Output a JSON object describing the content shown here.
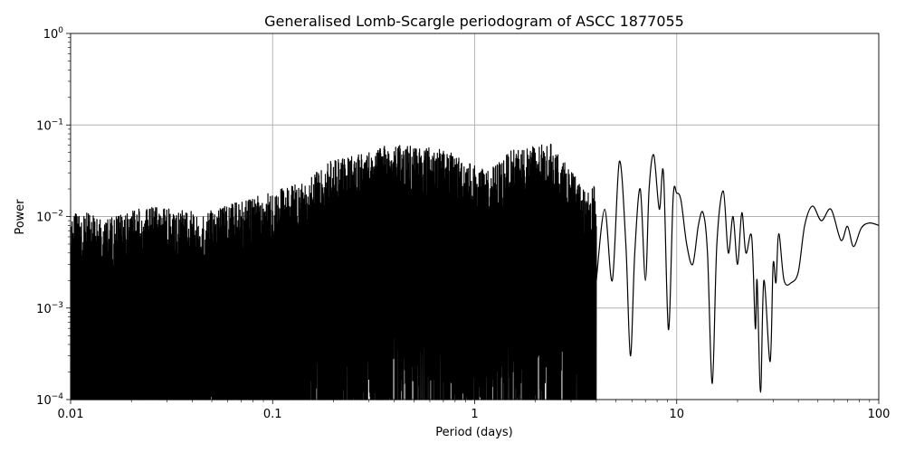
{
  "chart_data": {
    "type": "line",
    "title": "Generalised Lomb-Scargle periodogram of ASCC 1877055",
    "xlabel": "Period (days)",
    "ylabel": "Power",
    "xscale": "log",
    "yscale": "log",
    "xlim": [
      0.01,
      100
    ],
    "ylim": [
      0.0001,
      1
    ],
    "grid": true,
    "x_ticks": [
      {
        "value": 0.01,
        "label": "0.01"
      },
      {
        "value": 0.1,
        "label": "0.1"
      },
      {
        "value": 1,
        "label": "1"
      },
      {
        "value": 10,
        "label": "10"
      },
      {
        "value": 100,
        "label": "100"
      }
    ],
    "y_ticks": [
      {
        "value": 0.0001,
        "base": "10",
        "exp": "−4"
      },
      {
        "value": 0.001,
        "base": "10",
        "exp": "−3"
      },
      {
        "value": 0.01,
        "base": "10",
        "exp": "−2"
      },
      {
        "value": 0.1,
        "base": "10",
        "exp": "−1"
      },
      {
        "value": 1,
        "base": "10",
        "exp": "0"
      }
    ],
    "color": "#000000",
    "series": [
      {
        "peaks": [
          {
            "period": 0.012,
            "power": 0.011
          },
          {
            "period": 0.015,
            "power": 0.0095
          },
          {
            "period": 0.024,
            "power": 0.013
          },
          {
            "period": 0.045,
            "power": 0.011
          },
          {
            "period": 0.085,
            "power": 0.017
          },
          {
            "period": 0.15,
            "power": 0.025
          },
          {
            "period": 0.19,
            "power": 0.041
          },
          {
            "period": 0.28,
            "power": 0.051
          },
          {
            "period": 0.32,
            "power": 0.055
          },
          {
            "period": 0.38,
            "power": 0.061
          },
          {
            "period": 0.52,
            "power": 0.061
          },
          {
            "period": 0.68,
            "power": 0.055
          },
          {
            "period": 0.85,
            "power": 0.045
          },
          {
            "period": 1.15,
            "power": 0.031
          },
          {
            "period": 1.6,
            "power": 0.058
          },
          {
            "period": 2.4,
            "power": 0.062
          },
          {
            "period": 3.6,
            "power": 0.018
          },
          {
            "period": 5.2,
            "power": 0.04
          },
          {
            "period": 7.7,
            "power": 0.047
          },
          {
            "period": 10.0,
            "power": 0.018
          },
          {
            "period": 13.5,
            "power": 0.011
          },
          {
            "period": 17.0,
            "power": 0.019
          },
          {
            "period": 21.0,
            "power": 0.011
          },
          {
            "period": 32.0,
            "power": 0.0065
          },
          {
            "period": 47.0,
            "power": 0.013
          },
          {
            "period": 58.0,
            "power": 0.012
          },
          {
            "period": 70.0,
            "power": 0.0078
          },
          {
            "period": 90.0,
            "power": 0.0085
          }
        ],
        "troughs": [
          {
            "period": 5.9,
            "power": 0.0003
          },
          {
            "period": 9.1,
            "power": 0.00058
          },
          {
            "period": 15.0,
            "power": 0.00015
          },
          {
            "period": 26.0,
            "power": 0.00012
          },
          {
            "period": 29.0,
            "power": 0.00026
          },
          {
            "period": 37.0,
            "power": 0.0019
          },
          {
            "period": 75.0,
            "power": 0.0047
          }
        ],
        "points": [
          [
            4.0,
            0.002
          ],
          [
            4.4,
            0.012
          ],
          [
            4.8,
            0.002
          ],
          [
            5.2,
            0.04
          ],
          [
            5.6,
            0.005
          ],
          [
            5.9,
            0.0003
          ],
          [
            6.2,
            0.004
          ],
          [
            6.6,
            0.02
          ],
          [
            7.0,
            0.002
          ],
          [
            7.3,
            0.02
          ],
          [
            7.7,
            0.047
          ],
          [
            8.2,
            0.012
          ],
          [
            8.6,
            0.03
          ],
          [
            9.1,
            0.00058
          ],
          [
            9.6,
            0.016
          ],
          [
            10.0,
            0.018
          ],
          [
            10.5,
            0.015
          ],
          [
            11.2,
            0.005
          ],
          [
            12.0,
            0.003
          ],
          [
            12.8,
            0.008
          ],
          [
            13.5,
            0.011
          ],
          [
            14.2,
            0.004
          ],
          [
            15.0,
            0.00015
          ],
          [
            15.8,
            0.005
          ],
          [
            17.0,
            0.019
          ],
          [
            18.0,
            0.004
          ],
          [
            19.0,
            0.01
          ],
          [
            20.0,
            0.003
          ],
          [
            21.0,
            0.011
          ],
          [
            22.0,
            0.004
          ],
          [
            23.5,
            0.006
          ],
          [
            24.5,
            0.0006
          ],
          [
            25.0,
            0.002
          ],
          [
            26.0,
            0.00012
          ],
          [
            27.0,
            0.002
          ],
          [
            29.0,
            0.00026
          ],
          [
            30.0,
            0.003
          ],
          [
            31.0,
            0.0019
          ],
          [
            32.0,
            0.0065
          ],
          [
            34.0,
            0.002
          ],
          [
            37.0,
            0.0019
          ],
          [
            40.0,
            0.0025
          ],
          [
            43.0,
            0.008
          ],
          [
            47.0,
            0.013
          ],
          [
            52.0,
            0.009
          ],
          [
            58.0,
            0.012
          ],
          [
            65.0,
            0.0055
          ],
          [
            70.0,
            0.0078
          ],
          [
            75.0,
            0.0047
          ],
          [
            82.0,
            0.0075
          ],
          [
            90.0,
            0.0085
          ],
          [
            100.0,
            0.008
          ]
        ]
      }
    ]
  }
}
